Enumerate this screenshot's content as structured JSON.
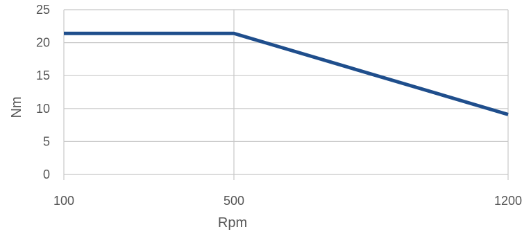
{
  "chart_data": {
    "type": "line",
    "title": "",
    "xlabel": "Rpm",
    "ylabel": "Nm",
    "x_categories": [
      "100",
      "500",
      "1200"
    ],
    "ylim": [
      0,
      25
    ],
    "y_ticks": [
      "0",
      "5",
      "10",
      "15",
      "20",
      "25"
    ],
    "grid": true,
    "series": [
      {
        "color": "#1f4e8c",
        "points": [
          {
            "x": "100",
            "y": 21.4
          },
          {
            "x": "500",
            "y": 21.4
          },
          {
            "x": "1200",
            "y": 9.1
          }
        ]
      }
    ]
  }
}
